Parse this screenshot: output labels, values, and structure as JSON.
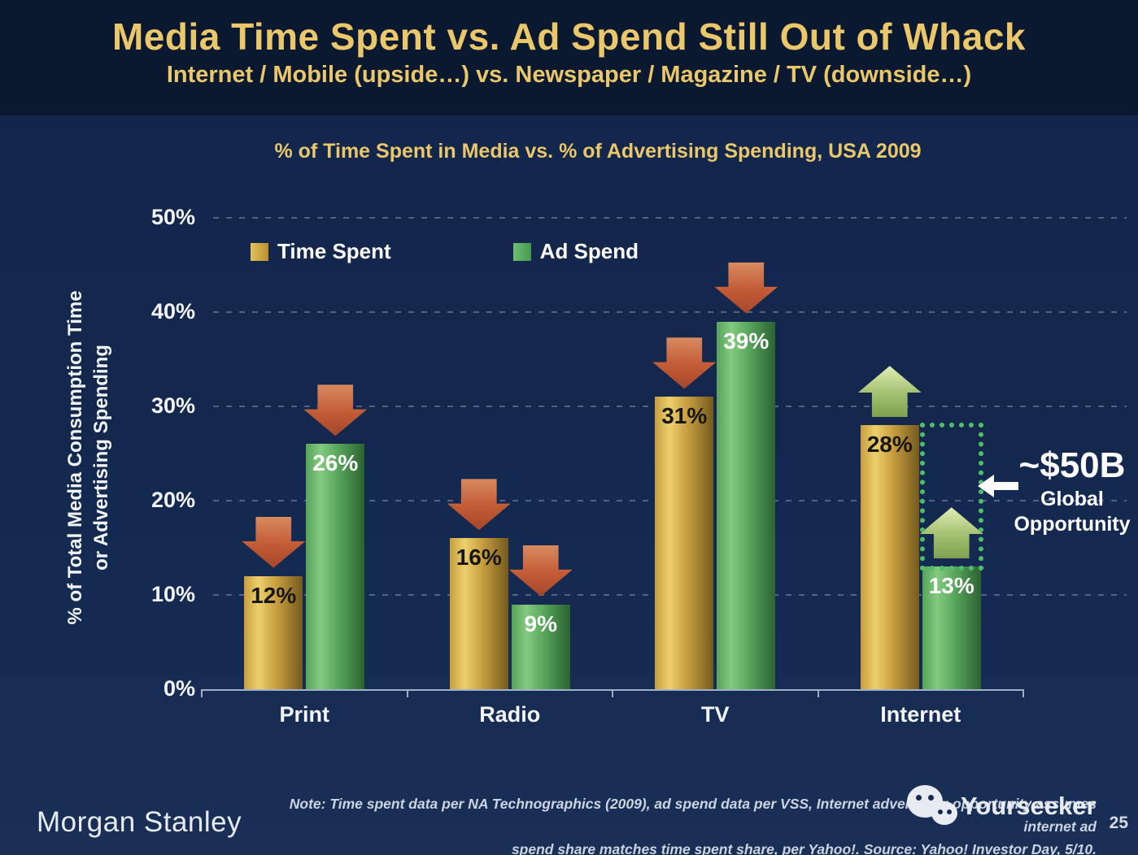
{
  "slide": {
    "title": "Media Time Spent vs. Ad Spend Still Out of Whack",
    "subtitle": "Internet / Mobile (upside…) vs. Newspaper / Magazine / TV (downside…)",
    "page_number": "25",
    "colors": {
      "accent_gold": "#E9C76A",
      "header_bg": "#0A1830",
      "body_bg": "#152A50"
    }
  },
  "chart_data": {
    "type": "bar",
    "title": "% of Time Spent in Media vs. % of Advertising Spending, USA 2009",
    "ylabel_line1": "% of Total Media Consumption Time",
    "ylabel_line2": "or Advertising Spending",
    "categories": [
      "Print",
      "Radio",
      "TV",
      "Internet"
    ],
    "series": [
      {
        "name": "Time Spent",
        "values": [
          12,
          16,
          31,
          28
        ],
        "labels": [
          "12%",
          "16%",
          "31%",
          "28%"
        ],
        "bar_color": "#D3A845",
        "label_color": "#161616"
      },
      {
        "name": "Ad Spend",
        "values": [
          26,
          9,
          39,
          13
        ],
        "labels": [
          "26%",
          "9%",
          "39%",
          "13%"
        ],
        "bar_color": "#5AAC5F",
        "label_color": "#FFFFFF"
      }
    ],
    "trend_arrows": [
      "down",
      "down",
      "down",
      "up"
    ],
    "trend_colors": {
      "down": "#C25B36",
      "up": "#A8C375"
    },
    "ylim": [
      0,
      50
    ],
    "ytick_values": [
      0,
      10,
      20,
      30,
      40,
      50
    ],
    "ytick_labels": [
      "0%",
      "10%",
      "20%",
      "30%",
      "40%",
      "50%"
    ],
    "grid": "dashed-horizontal",
    "legend_position": "top-left-inside",
    "annotation": {
      "headline": "~$50B",
      "line1": "Global",
      "line2": "Opportunity",
      "box": {
        "category": "Internet",
        "series": "Ad Spend",
        "from": 13,
        "to": 28
      }
    }
  },
  "footer": {
    "logo": "Morgan Stanley",
    "note_line1": "Note: Time spent data per NA Technographics (2009), ad spend data per VSS, Internet advertising opportunity assumes internet ad",
    "note_line2": "spend share matches time spent share, per Yahoo!. Source: Yahoo! Investor Day, 5/10.",
    "watermark": "Yourseeker"
  }
}
